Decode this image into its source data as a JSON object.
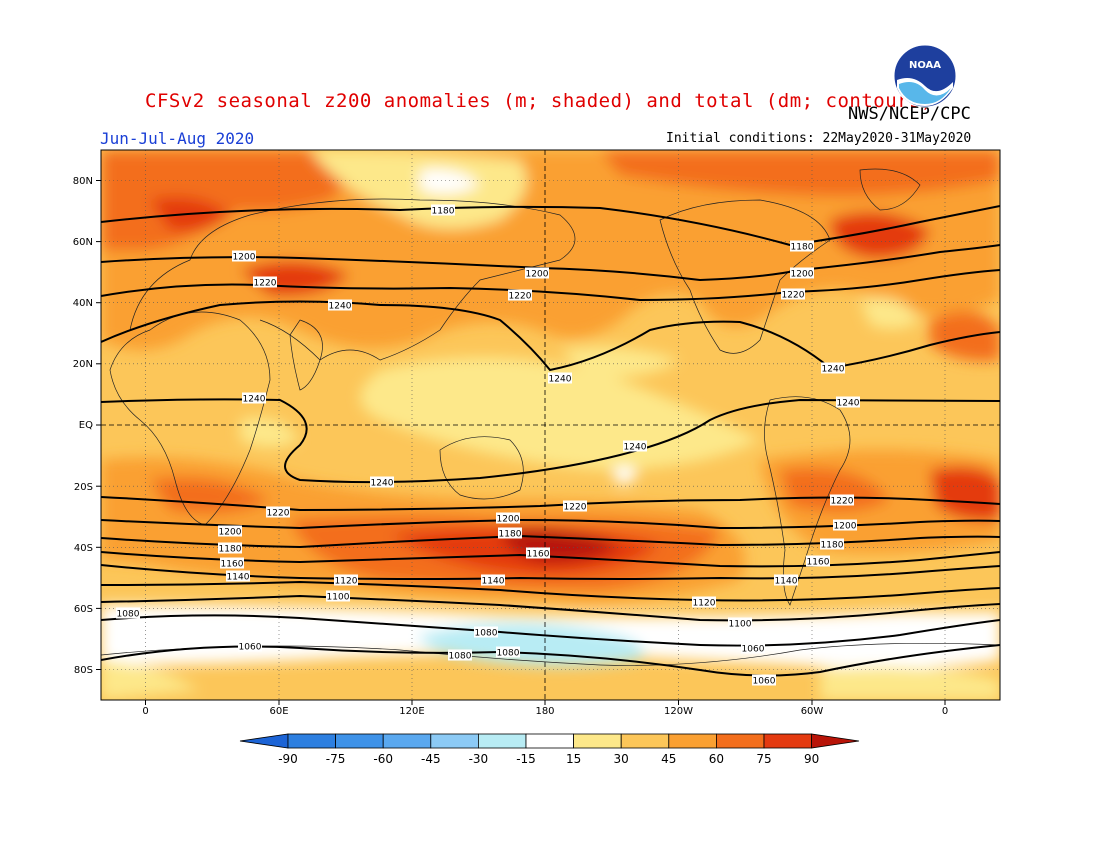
{
  "header": {
    "title": "CFSv2 seasonal z200 anomalies (m; shaded) and total (dm; contours)",
    "organization": "NWS/NCEP/CPC",
    "season": "Jun-Jul-Aug 2020",
    "initial_conditions": "Initial conditions: 22May2020-31May2020",
    "logo_text": "NOAA",
    "logo_icon": "noaa-logo-icon"
  },
  "map": {
    "lat_labels": [
      "80N",
      "60N",
      "40N",
      "20N",
      "EQ",
      "20S",
      "40S",
      "60S",
      "80S"
    ],
    "lon_labels": [
      "0",
      "60E",
      "120E",
      "180",
      "120W",
      "60W",
      "0"
    ],
    "contour_labels": [
      {
        "text": "1180",
        "lat": 67
      },
      {
        "text": "1180",
        "lat": 58
      },
      {
        "text": "1200",
        "lat": 55
      },
      {
        "text": "1200",
        "lat": 50
      },
      {
        "text": "1200",
        "lat": 50
      },
      {
        "text": "1220",
        "lat": 46
      },
      {
        "text": "1220",
        "lat": 43
      },
      {
        "text": "1220",
        "lat": 42
      },
      {
        "text": "1240",
        "lat": 40
      },
      {
        "text": "1240",
        "lat": 18
      },
      {
        "text": "1240",
        "lat": 21
      },
      {
        "text": "1240",
        "lat": 8
      },
      {
        "text": "1240",
        "lat": 7
      },
      {
        "text": "1240",
        "lat": -7
      },
      {
        "text": "1240",
        "lat": -19
      },
      {
        "text": "1220",
        "lat": -27
      },
      {
        "text": "1220",
        "lat": -25
      },
      {
        "text": "1220",
        "lat": -25
      },
      {
        "text": "1200",
        "lat": -31
      },
      {
        "text": "1200",
        "lat": -35
      },
      {
        "text": "1200",
        "lat": -32
      },
      {
        "text": "1180",
        "lat": -36
      },
      {
        "text": "1180",
        "lat": -39
      },
      {
        "text": "1180",
        "lat": -38
      },
      {
        "text": "1160",
        "lat": -41
      },
      {
        "text": "1160",
        "lat": -42
      },
      {
        "text": "1160",
        "lat": -45
      },
      {
        "text": "1140",
        "lat": -45
      },
      {
        "text": "1140",
        "lat": -51
      },
      {
        "text": "1140",
        "lat": -51
      },
      {
        "text": "1120",
        "lat": -51
      },
      {
        "text": "1120",
        "lat": -58
      },
      {
        "text": "1100",
        "lat": -56
      },
      {
        "text": "1100",
        "lat": -66
      },
      {
        "text": "1080",
        "lat": -63
      },
      {
        "text": "1080",
        "lat": -69
      },
      {
        "text": "1080",
        "lat": -74
      },
      {
        "text": "1060",
        "lat": -73
      },
      {
        "text": "1060",
        "lat": -79
      },
      {
        "text": "1060",
        "lat": -79
      },
      {
        "text": "1080",
        "lat": -72
      }
    ]
  },
  "colorbar": {
    "labels": [
      "-90",
      "-75",
      "-60",
      "-45",
      "-30",
      "-15",
      "15",
      "30",
      "45",
      "60",
      "75",
      "90"
    ],
    "colors": {
      "below_min": "#1c64d6",
      "neg90": "#2d7fe0",
      "neg75": "#3e92e8",
      "neg60": "#5aa8ef",
      "neg45": "#8ccaf5",
      "neg30": "#b8ecf4",
      "neutral": "#ffffff",
      "pos15": "#fde88a",
      "pos30": "#fcc659",
      "pos45": "#faa032",
      "pos60": "#f36e1c",
      "pos75": "#e43a10",
      "above_max": "#b81408"
    }
  }
}
